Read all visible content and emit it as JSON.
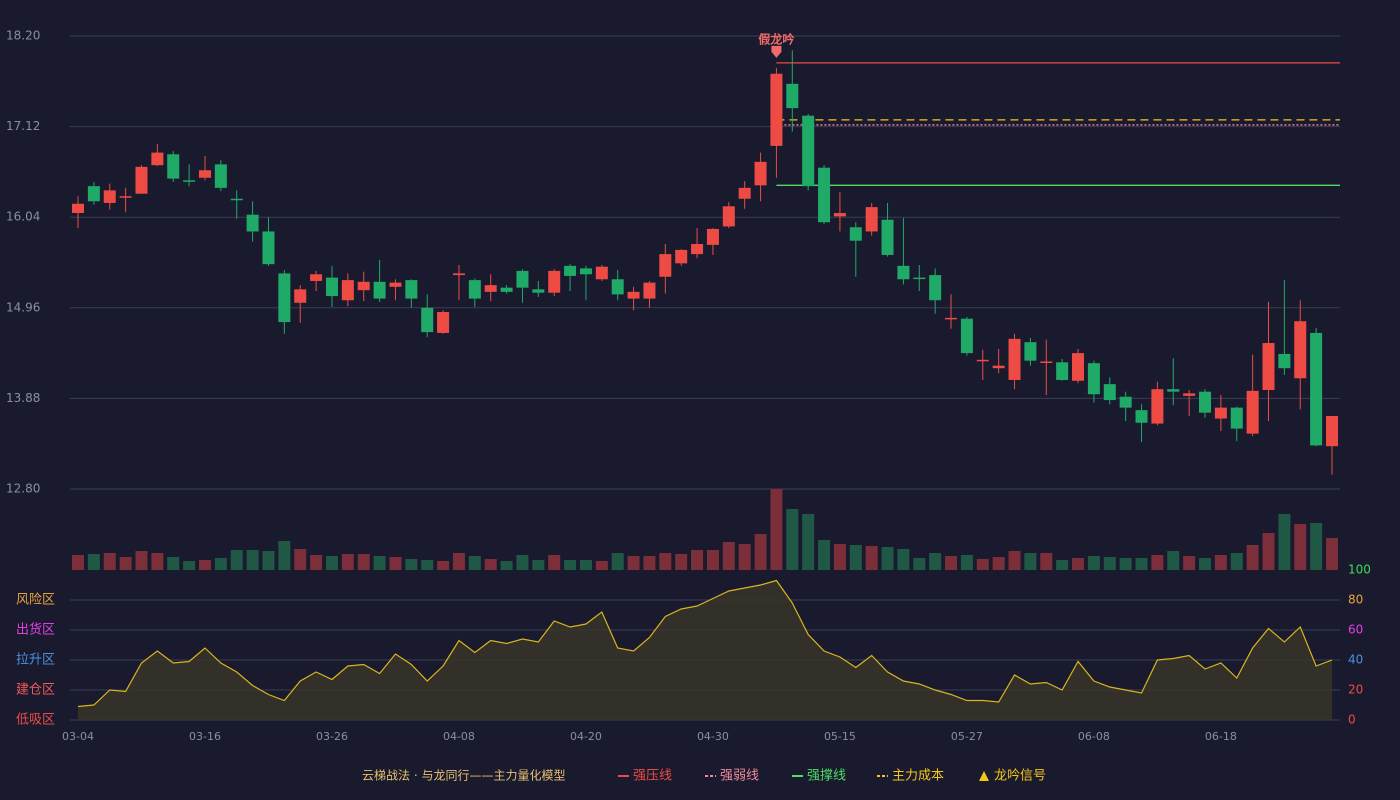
{
  "chart_data": [
    {
      "type": "candlestick",
      "categories": [
        "03-04",
        null,
        null,
        null,
        null,
        null,
        null,
        null,
        "03-16",
        null,
        null,
        null,
        null,
        null,
        null,
        null,
        "03-26",
        null,
        null,
        null,
        null,
        null,
        null,
        null,
        "04-08",
        null,
        null,
        null,
        null,
        null,
        null,
        null,
        "04-20",
        null,
        null,
        null,
        null,
        null,
        null,
        null,
        "04-30",
        null,
        null,
        null,
        null,
        null,
        null,
        null,
        "05-15",
        null,
        null,
        null,
        null,
        null,
        null,
        null,
        "05-27",
        null,
        null,
        null,
        null,
        null,
        null,
        null,
        "06-08",
        null,
        null,
        null,
        null,
        null,
        null,
        null,
        "06-18",
        null,
        null,
        null,
        null,
        null,
        null,
        null
      ],
      "open": [
        16.09,
        16.41,
        16.21,
        16.28,
        16.32,
        16.66,
        16.79,
        16.48,
        16.51,
        16.67,
        16.26,
        16.07,
        15.87,
        15.37,
        15.02,
        15.28,
        15.32,
        15.05,
        15.17,
        15.27,
        15.21,
        15.29,
        14.96,
        14.66,
        15.35,
        15.29,
        15.15,
        15.2,
        15.4,
        15.18,
        15.14,
        15.46,
        15.43,
        15.3,
        15.3,
        15.07,
        15.07,
        15.33,
        15.49,
        15.6,
        15.71,
        15.93,
        16.26,
        16.42,
        16.89,
        17.63,
        17.25,
        16.63,
        16.05,
        15.92,
        15.87,
        16.01,
        15.46,
        15.32,
        15.35,
        14.83,
        14.83,
        14.33,
        14.24,
        14.1,
        14.55,
        14.31,
        14.31,
        14.09,
        14.3,
        14.05,
        13.9,
        13.74,
        13.58,
        13.99,
        13.91,
        13.96,
        13.64,
        13.77,
        13.46,
        13.98,
        14.41,
        14.12,
        14.66,
        13.31
      ],
      "high": [
        16.29,
        16.46,
        16.44,
        16.39,
        16.66,
        16.91,
        16.83,
        16.67,
        16.77,
        16.72,
        16.36,
        16.23,
        16.04,
        15.41,
        15.23,
        15.4,
        15.46,
        15.37,
        15.39,
        15.53,
        15.3,
        15.3,
        15.12,
        14.93,
        15.47,
        15.31,
        15.36,
        15.23,
        15.42,
        15.28,
        15.42,
        15.48,
        15.46,
        15.47,
        15.41,
        15.21,
        15.28,
        15.72,
        15.66,
        15.91,
        15.91,
        16.22,
        16.47,
        16.81,
        17.82,
        18.03,
        17.27,
        16.66,
        16.34,
        15.98,
        16.21,
        16.21,
        16.03,
        15.47,
        15.43,
        15.12,
        14.85,
        14.46,
        14.47,
        14.65,
        14.6,
        14.58,
        14.35,
        14.47,
        14.33,
        14.13,
        13.96,
        13.81,
        14.08,
        14.36,
        13.98,
        13.99,
        13.92,
        13.78,
        14.4,
        15.03,
        15.29,
        15.05,
        14.72,
        13.67
      ],
      "low": [
        15.91,
        16.19,
        16.13,
        16.1,
        16.32,
        16.65,
        16.46,
        16.41,
        16.48,
        16.35,
        16.02,
        15.75,
        15.46,
        14.65,
        14.78,
        15.16,
        14.97,
        14.98,
        15.04,
        15.03,
        15.05,
        14.96,
        14.61,
        14.65,
        15.05,
        14.97,
        15.04,
        15.13,
        15.02,
        15.09,
        15.1,
        15.16,
        15.05,
        15.28,
        15.05,
        14.93,
        14.96,
        15.13,
        15.46,
        15.55,
        15.59,
        15.91,
        16.14,
        16.23,
        16.51,
        17.06,
        16.36,
        15.96,
        15.87,
        15.33,
        15.82,
        15.57,
        15.24,
        15.16,
        14.89,
        14.71,
        14.39,
        14.1,
        14.18,
        13.99,
        14.27,
        13.92,
        14.09,
        14.06,
        13.83,
        13.81,
        13.61,
        13.36,
        13.56,
        13.8,
        13.67,
        13.65,
        13.49,
        13.37,
        13.43,
        13.61,
        14.16,
        13.75,
        13.31,
        12.97
      ],
      "close": [
        16.2,
        16.23,
        16.36,
        16.29,
        16.64,
        16.81,
        16.5,
        16.47,
        16.6,
        16.39,
        16.25,
        15.87,
        15.48,
        14.79,
        15.18,
        15.36,
        15.1,
        15.29,
        15.27,
        15.07,
        15.26,
        15.07,
        14.67,
        14.91,
        15.37,
        15.07,
        15.23,
        15.15,
        15.2,
        15.14,
        15.4,
        15.34,
        15.36,
        15.45,
        15.12,
        15.15,
        15.26,
        15.6,
        15.65,
        15.72,
        15.9,
        16.17,
        16.39,
        16.7,
        17.75,
        17.34,
        16.41,
        15.98,
        16.09,
        15.76,
        16.16,
        15.59,
        15.3,
        15.31,
        15.05,
        14.84,
        14.42,
        14.34,
        14.27,
        14.59,
        14.33,
        14.32,
        14.1,
        14.42,
        13.93,
        13.86,
        13.77,
        13.59,
        13.99,
        13.96,
        13.94,
        13.71,
        13.77,
        13.52,
        13.97,
        14.54,
        14.24,
        14.8,
        13.32,
        13.67
      ],
      "up_color": "#ef4b45",
      "down_color": "#1fab67",
      "ylim": [
        12.8,
        18.2
      ],
      "yticks": [
        {
          "value": 18.2,
          "label": "18.20"
        },
        {
          "value": 17.12,
          "label": "17.12"
        },
        {
          "value": 16.04,
          "label": "16.04"
        },
        {
          "value": 14.96,
          "label": "14.96"
        },
        {
          "value": 13.88,
          "label": "13.88"
        },
        {
          "value": 12.8,
          "label": "12.80"
        }
      ],
      "grid": true,
      "levels": [
        {
          "name": "强压线",
          "value": 17.88,
          "start": 44,
          "color": "#ef4b45",
          "style": "solid"
        },
        {
          "name": "强弱线",
          "value": 17.14,
          "start": 44,
          "color": "#f08a9a",
          "style": "dotted"
        },
        {
          "name": "强撑线",
          "value": 16.42,
          "start": 44,
          "color": "#4fdc66",
          "style": "solid"
        },
        {
          "name": "主力成本",
          "value": 17.2,
          "start": 44,
          "color": "#f5c518",
          "style": "dashed"
        }
      ],
      "signals": {
        "name": "龙吟信号",
        "color": "#f5c518",
        "mark_color": "#f06a6a",
        "marks": [
          {
            "index": 44,
            "label": "假龙吟"
          }
        ]
      }
    },
    {
      "type": "volume",
      "values": [
        15,
        16,
        17,
        13,
        19,
        17,
        13,
        9,
        10,
        12,
        20,
        20,
        19,
        29,
        21,
        15,
        14,
        16,
        16,
        14,
        13,
        11,
        10,
        9,
        17,
        14,
        11,
        9,
        15,
        10,
        15,
        10,
        10,
        9,
        17,
        14,
        14,
        17,
        16,
        20,
        20,
        28,
        26,
        36,
        81,
        61,
        56,
        30,
        26,
        25,
        24,
        23,
        21,
        12,
        17,
        14,
        15,
        11,
        13,
        19,
        17,
        17,
        10,
        12,
        14,
        13,
        12,
        12,
        15,
        19,
        14,
        12,
        15,
        17,
        25,
        37,
        56,
        46,
        47,
        32
      ],
      "ylim": [
        0,
        81
      ],
      "up_color": "#7c2f3a",
      "down_color": "#1f5946"
    },
    {
      "type": "area",
      "values": [
        9,
        10,
        20,
        19,
        38,
        46,
        38,
        39,
        48,
        38,
        32,
        23,
        17,
        13,
        26,
        32,
        27,
        36,
        37,
        31,
        44,
        37,
        26,
        36,
        53,
        45,
        53,
        51,
        54,
        52,
        66,
        62,
        64,
        72,
        48,
        46,
        55,
        69,
        74,
        76,
        81,
        86,
        88,
        90,
        93,
        78,
        57,
        46,
        42,
        35,
        43,
        32,
        26,
        24,
        20,
        17,
        13,
        13,
        12,
        30,
        24,
        25,
        20,
        39,
        26,
        22,
        20,
        18,
        40,
        41,
        43,
        34,
        38,
        28,
        48,
        61,
        52,
        62,
        36,
        40
      ],
      "color": "#d9b51e",
      "fill": "#3a3428",
      "ylim": [
        0,
        100
      ],
      "yticks": [
        0,
        20,
        40,
        60,
        80,
        100
      ],
      "ytick_colors": [
        "#ef4b45",
        "#ef4b45",
        "#4a90e2",
        "#e040e0",
        "#e8a33d",
        "#3ddc5a"
      ],
      "grid": true,
      "zones": [
        {
          "label": "风险区",
          "value": 80,
          "color": "#e8a33d"
        },
        {
          "label": "出货区",
          "value": 60,
          "color": "#e040e0"
        },
        {
          "label": "拉升区",
          "value": 40,
          "color": "#4a90e2"
        },
        {
          "label": "建仓区",
          "value": 20,
          "color": "#ef5a5a"
        },
        {
          "label": "低吸区",
          "value": 0,
          "color": "#ef4b45"
        }
      ]
    }
  ],
  "legend_title": "云梯战法 · 与龙同行——主力量化模型"
}
